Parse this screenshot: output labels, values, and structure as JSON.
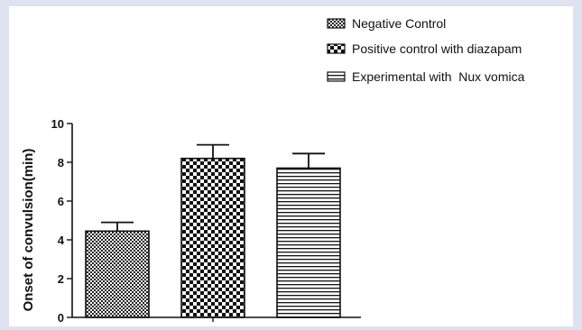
{
  "chart_data": {
    "type": "bar",
    "title": "",
    "xlabel": "",
    "ylabel": "Onset of convulsion(min)",
    "ylim": [
      0,
      10
    ],
    "yticks": [
      0,
      2,
      4,
      6,
      8,
      10
    ],
    "grid": false,
    "legend_position": "top-right",
    "series": [
      {
        "name": "Negative Control",
        "value": 4.45,
        "error": 0.45,
        "pattern": "fine-checker"
      },
      {
        "name": "Positive control with diazapam",
        "value": 8.2,
        "error": 0.7,
        "pattern": "checkerboard"
      },
      {
        "name": "Experimental with  Nux vomica",
        "value": 7.7,
        "error": 0.75,
        "pattern": "horizontal-stripes"
      }
    ]
  },
  "colors": {
    "background": "#dfe3f1",
    "panel": "#ffffff",
    "ink": "#111111"
  }
}
